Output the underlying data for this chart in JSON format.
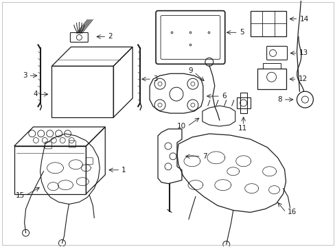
{
  "background_color": "#ffffff",
  "line_color": "#1a1a1a",
  "figsize": [
    4.89,
    3.6
  ],
  "dpi": 100
}
